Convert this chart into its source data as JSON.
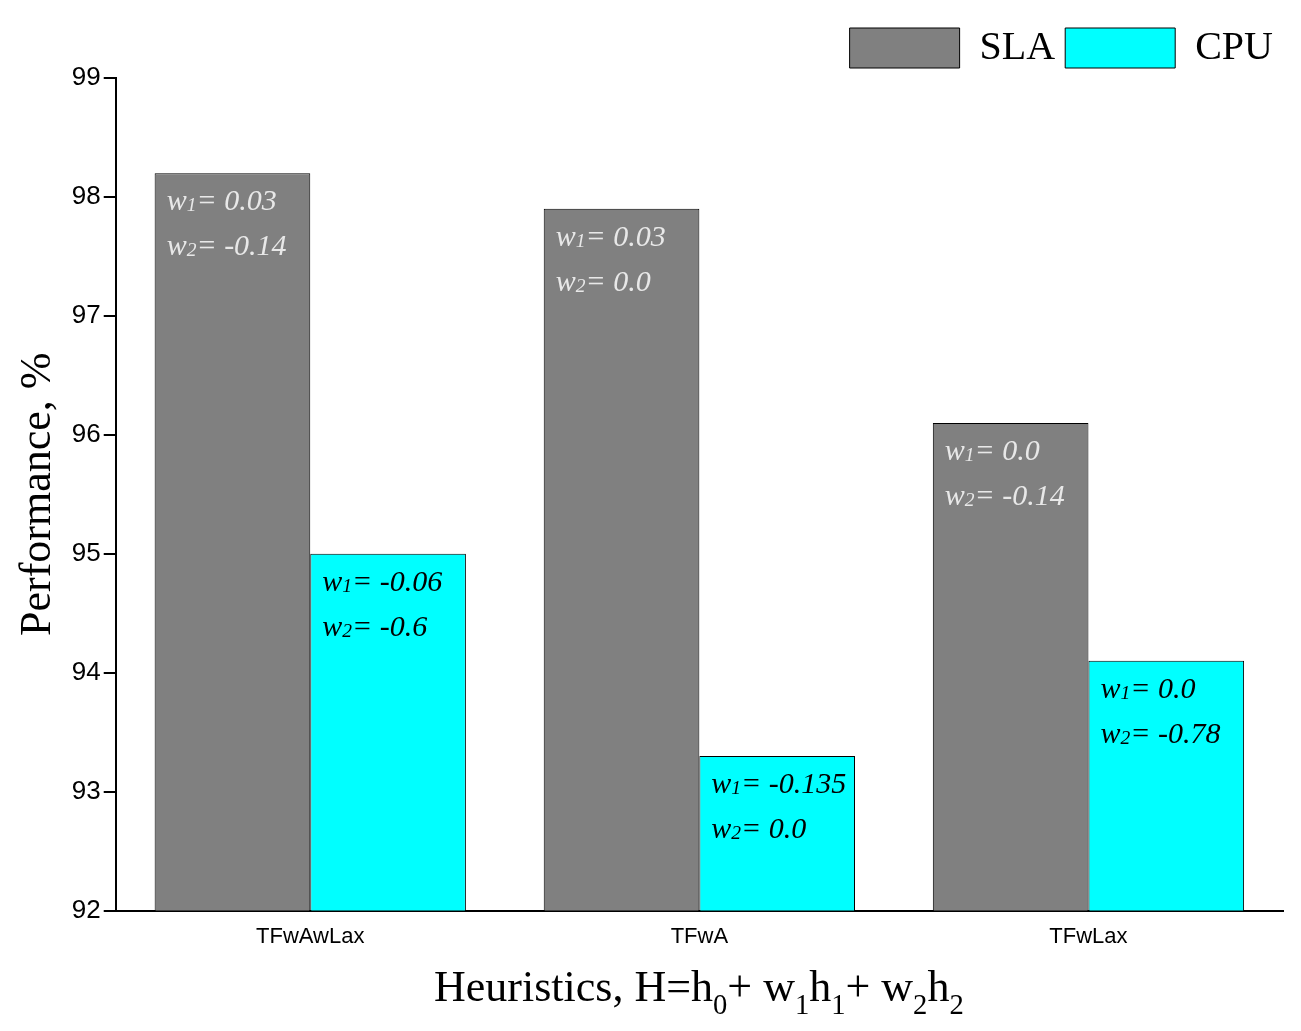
{
  "chart_data": {
    "type": "bar",
    "xlabel": "Heuristics, H=h$_{0}$+ w$_{1}$h$_{1}$+ w$_{2}$h$_{2}$",
    "ylabel": "Performance, %",
    "categories": [
      "TFwAwLax",
      "TFwA",
      "TFwLax"
    ],
    "series": [
      {
        "name": "SLA",
        "color": "#808080",
        "values": [
          98.2,
          97.9,
          96.1
        ]
      },
      {
        "name": "CPU",
        "color": "#00ffff",
        "values": [
          95.0,
          93.3,
          94.1
        ]
      }
    ],
    "ylim": [
      92,
      99
    ],
    "yticks": [
      92,
      93,
      94,
      95,
      96,
      97,
      98,
      99
    ],
    "grid": false,
    "legend": "top right",
    "annotations": [
      {
        "text": "w$_{1}$= 0.03\nw$_{2}$= -0.14",
        "x": "TFwAwLax",
        "y": 98.2
      },
      {
        "text": "w$_{1}$= -0.06\nw$_{2}$= -0.6",
        "x": "TFwAwLax",
        "y": 95.0
      },
      {
        "text": "w$_{1}$= 0.03\nw$_{2}$= 0.0",
        "x": "TFwA",
        "y": 97.9
      },
      {
        "text": "w$_{1}$= -0.135\nw$_{2}$= 0.0",
        "x": "TFwA",
        "y": 93.3
      },
      {
        "text": "w$_{1}$= 0.0\nw$_{2}$= -0.14",
        "x": "TFwLax",
        "y": 96.1
      },
      {
        "text": "w$_{1}$= 0.0\nw$_{2}$= -0.78",
        "x": "TFwLax",
        "y": 94.1
      }
    ]
  }
}
